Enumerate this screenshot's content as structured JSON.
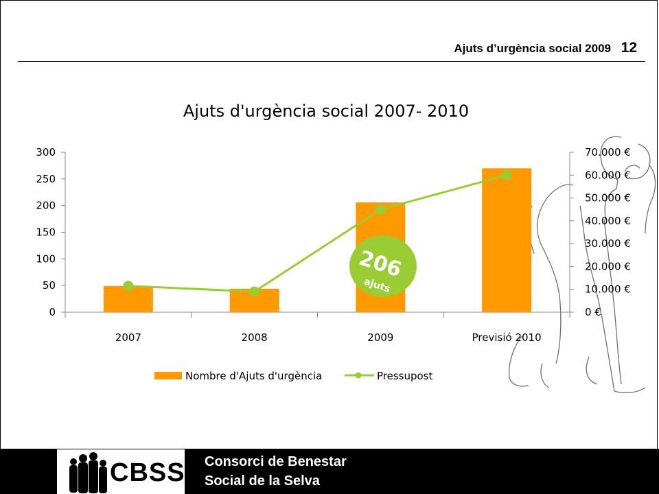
{
  "header": {
    "title": "Ajuts d’urgència social 2009",
    "page_number": "12"
  },
  "chart_data": {
    "type": "bar",
    "title": "Ajuts d'urgència social 2007- 2010",
    "categories": [
      "2007",
      "2008",
      "2009",
      "Previsió 2010"
    ],
    "series": [
      {
        "name": "Nombre d'Ajuts d'urgència",
        "type": "bar",
        "axis": "left",
        "values": [
          49,
          44,
          206,
          270
        ],
        "color": "#FF9900"
      },
      {
        "name": "Pressupost",
        "type": "line",
        "axis": "right",
        "values": [
          11500,
          9000,
          45000,
          60000
        ],
        "color": "#99CC33"
      }
    ],
    "ylim": [
      0,
      300
    ],
    "yticks": [
      "0",
      "50",
      "100",
      "150",
      "200",
      "250",
      "300"
    ],
    "y2lim": [
      0,
      70000
    ],
    "y2ticks": [
      "0 €",
      "10.000 €",
      "20.000 €",
      "30.000 €",
      "40.000 €",
      "50.000 €",
      "60.000 €",
      "70.000 €"
    ],
    "legend_position": "bottom",
    "annotation": {
      "value": "206",
      "unit": "ajuts",
      "color": "#99CC33"
    }
  },
  "footer": {
    "logo_text": "CBSS",
    "org_line1": "Consorci de Benestar",
    "org_line2": "Social de la Selva"
  }
}
